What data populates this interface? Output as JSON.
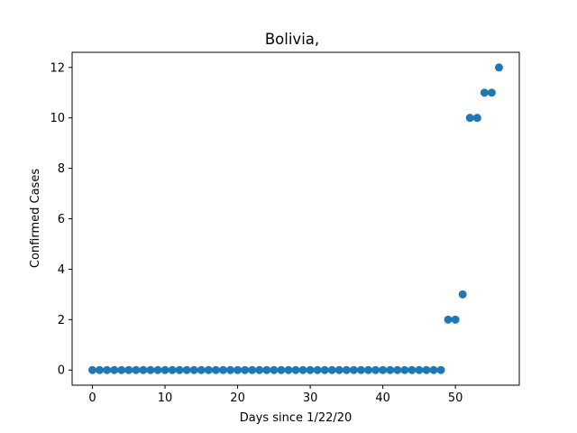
{
  "chart_data": {
    "type": "scatter",
    "title": "Bolivia,",
    "xlabel": "Days since 1/22/20",
    "ylabel": "Confirmed Cases",
    "xlim": [
      -2.8,
      58.8
    ],
    "ylim": [
      -0.6,
      12.6
    ],
    "xticks": [
      0,
      10,
      20,
      30,
      40,
      50
    ],
    "yticks": [
      0,
      2,
      4,
      6,
      8,
      10,
      12
    ],
    "grid": false,
    "marker_color": "#1f77b4",
    "x": [
      0,
      1,
      2,
      3,
      4,
      5,
      6,
      7,
      8,
      9,
      10,
      11,
      12,
      13,
      14,
      15,
      16,
      17,
      18,
      19,
      20,
      21,
      22,
      23,
      24,
      25,
      26,
      27,
      28,
      29,
      30,
      31,
      32,
      33,
      34,
      35,
      36,
      37,
      38,
      39,
      40,
      41,
      42,
      43,
      44,
      45,
      46,
      47,
      48,
      49,
      50,
      51,
      52,
      53,
      54,
      55,
      56
    ],
    "y": [
      0,
      0,
      0,
      0,
      0,
      0,
      0,
      0,
      0,
      0,
      0,
      0,
      0,
      0,
      0,
      0,
      0,
      0,
      0,
      0,
      0,
      0,
      0,
      0,
      0,
      0,
      0,
      0,
      0,
      0,
      0,
      0,
      0,
      0,
      0,
      0,
      0,
      0,
      0,
      0,
      0,
      0,
      0,
      0,
      0,
      0,
      0,
      0,
      0,
      2,
      2,
      3,
      10,
      10,
      11,
      11,
      12
    ]
  }
}
